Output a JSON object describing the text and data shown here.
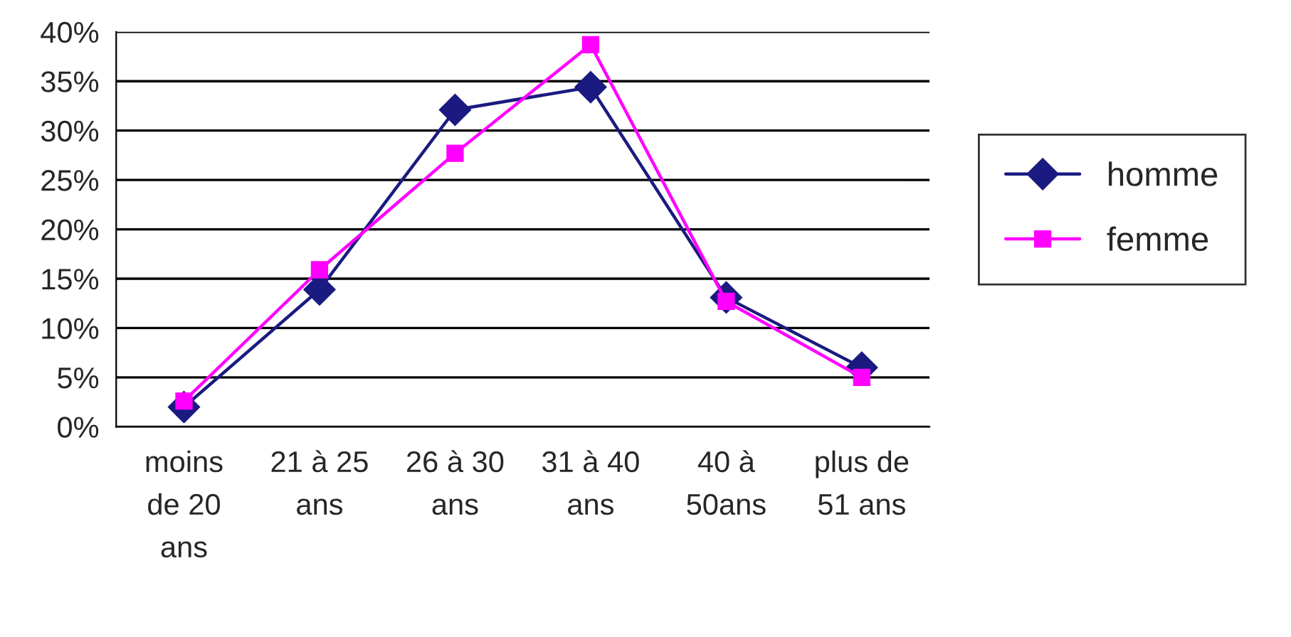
{
  "chart_data": {
    "type": "line",
    "categories": [
      "moins\nde 20\nans",
      "21 à 25\nans",
      "26 à 30\nans",
      "31 à 40\nans",
      "40 à\n50ans",
      "plus de\n51 ans"
    ],
    "series": [
      {
        "name": "homme",
        "color": "#1a1a80",
        "marker": "diamond",
        "values": [
          2,
          13.9,
          32.1,
          34.4,
          13.1,
          6
        ]
      },
      {
        "name": "femme",
        "color": "#ff00ff",
        "marker": "square",
        "values": [
          2.6,
          15.9,
          27.7,
          38.7,
          12.7,
          5
        ]
      }
    ],
    "ylim": [
      0,
      40
    ],
    "yticks": [
      {
        "value": 0,
        "label": "0%"
      },
      {
        "value": 5,
        "label": "5%"
      },
      {
        "value": 10,
        "label": "10%"
      },
      {
        "value": 15,
        "label": "15%"
      },
      {
        "value": 20,
        "label": "20%"
      },
      {
        "value": 25,
        "label": "25%"
      },
      {
        "value": 30,
        "label": "30%"
      },
      {
        "value": 35,
        "label": "35%"
      },
      {
        "value": 40,
        "label": "40%"
      }
    ],
    "grid": "y",
    "legend": "right",
    "line_style": "solid"
  }
}
